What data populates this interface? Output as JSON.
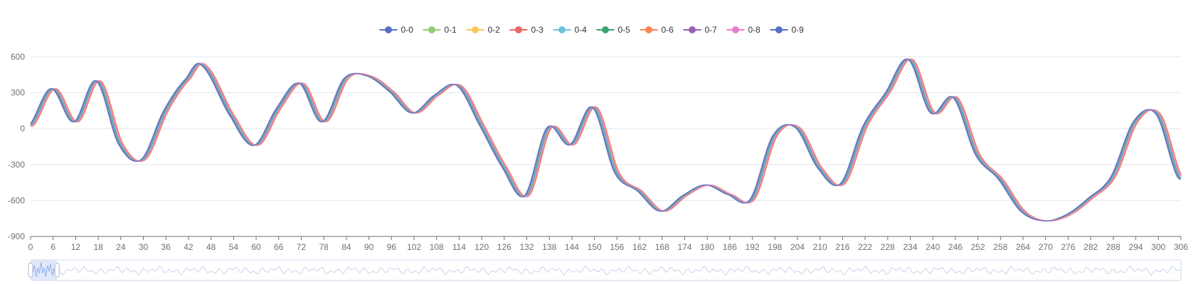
{
  "chart_data": {
    "type": "line",
    "title": "",
    "xlabel": "",
    "ylabel": "",
    "xlim": [
      0,
      306
    ],
    "ylim": [
      -900,
      600
    ],
    "y_ticks": [
      600,
      300,
      0,
      -300,
      -600,
      -900
    ],
    "x_tick_step": 6,
    "grid": true,
    "legend_position": "top-center",
    "key_points": [
      [
        0,
        20
      ],
      [
        6,
        335
      ],
      [
        12,
        55
      ],
      [
        18,
        400
      ],
      [
        24,
        -130
      ],
      [
        30,
        -258
      ],
      [
        36,
        150
      ],
      [
        42,
        420
      ],
      [
        46,
        530
      ],
      [
        54,
        90
      ],
      [
        60,
        -140
      ],
      [
        66,
        170
      ],
      [
        72,
        380
      ],
      [
        78,
        55
      ],
      [
        84,
        420
      ],
      [
        90,
        440
      ],
      [
        96,
        310
      ],
      [
        102,
        130
      ],
      [
        108,
        280
      ],
      [
        114,
        360
      ],
      [
        120,
        30
      ],
      [
        126,
        -320
      ],
      [
        132,
        -560
      ],
      [
        138,
        10
      ],
      [
        144,
        -135
      ],
      [
        150,
        180
      ],
      [
        156,
        -370
      ],
      [
        162,
        -520
      ],
      [
        168,
        -690
      ],
      [
        174,
        -560
      ],
      [
        180,
        -470
      ],
      [
        186,
        -550
      ],
      [
        192,
        -590
      ],
      [
        198,
        -60
      ],
      [
        204,
        10
      ],
      [
        210,
        -330
      ],
      [
        216,
        -460
      ],
      [
        222,
        20
      ],
      [
        228,
        300
      ],
      [
        234,
        580
      ],
      [
        240,
        130
      ],
      [
        246,
        260
      ],
      [
        252,
        -220
      ],
      [
        258,
        -420
      ],
      [
        264,
        -690
      ],
      [
        270,
        -770
      ],
      [
        276,
        -720
      ],
      [
        282,
        -580
      ],
      [
        288,
        -400
      ],
      [
        294,
        60
      ],
      [
        300,
        120
      ],
      [
        306,
        -420
      ]
    ],
    "series": [
      {
        "name": "0-0",
        "color": "#5470c6",
        "offset": 0.0
      },
      {
        "name": "0-1",
        "color": "#91cc75",
        "offset": -0.25
      },
      {
        "name": "0-2",
        "color": "#fac858",
        "offset": -0.45
      },
      {
        "name": "0-3",
        "color": "#ee6666",
        "offset": -0.65
      },
      {
        "name": "0-4",
        "color": "#73c0de",
        "offset": 0.2
      },
      {
        "name": "0-5",
        "color": "#3ba272",
        "offset": 0.35
      },
      {
        "name": "0-6",
        "color": "#fc8452",
        "offset": -0.55
      },
      {
        "name": "0-7",
        "color": "#9a60b4",
        "offset": 0.5
      },
      {
        "name": "0-8",
        "color": "#ea7ccc",
        "offset": -0.35
      },
      {
        "name": "0-9",
        "color": "#5470c6",
        "offset": 0.65
      }
    ],
    "data_zoom": {
      "start_percent": 0,
      "end_percent": 2.3
    }
  }
}
